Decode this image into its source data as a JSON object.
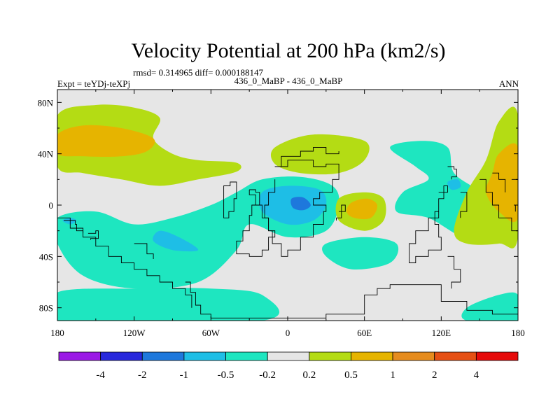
{
  "chart_data": {
    "type": "heatmap",
    "title": "Velocity Potential at 200 hPa (km2/s)",
    "stats": "rmsd= 0.314965 diff= 0.000188147",
    "experiment": "Expt = teYDj-teXPj",
    "comparison": "436_0_MaBP - 436_0_MaBP",
    "period": "ANN",
    "x_ticks": [
      "180",
      "120W",
      "60W",
      "0",
      "60E",
      "120E",
      "180"
    ],
    "x_values": [
      -180,
      -120,
      -60,
      0,
      60,
      120,
      180
    ],
    "y_ticks": [
      "80N",
      "40N",
      "0",
      "40S",
      "80S"
    ],
    "y_values": [
      80,
      40,
      0,
      -40,
      -80
    ],
    "xlim": [
      -180,
      180
    ],
    "ylim": [
      -90,
      90
    ],
    "colorbar": {
      "labels": [
        "-4",
        "-2",
        "-1",
        "-0.5",
        "-0.2",
        "0.2",
        "0.5",
        "1",
        "2",
        "4"
      ],
      "colors": [
        "#9b1ae6",
        "#2828dc",
        "#1e78dc",
        "#1ebee6",
        "#1ee6c0",
        "#e6e6e6",
        "#b4dc14",
        "#e6b400",
        "#e68c1e",
        "#e65014",
        "#e60a0a"
      ]
    },
    "regions": [
      {
        "level": 0.5,
        "color": "#b4dc14",
        "points": [
          [
            -180,
            70
          ],
          [
            -150,
            78
          ],
          [
            -120,
            76
          ],
          [
            -100,
            68
          ],
          [
            -105,
            52
          ],
          [
            -90,
            40
          ],
          [
            -70,
            35
          ],
          [
            -40,
            33
          ],
          [
            -40,
            26
          ],
          [
            -70,
            20
          ],
          [
            -100,
            15
          ],
          [
            -130,
            20
          ],
          [
            -160,
            25
          ],
          [
            -180,
            30
          ]
        ]
      },
      {
        "level": 1,
        "color": "#e6b400",
        "points": [
          [
            -180,
            55
          ],
          [
            -160,
            62
          ],
          [
            -130,
            60
          ],
          [
            -105,
            52
          ],
          [
            -110,
            42
          ],
          [
            -130,
            38
          ],
          [
            -160,
            38
          ],
          [
            -180,
            40
          ]
        ]
      },
      {
        "level": -0.5,
        "color": "#1ee6c0",
        "points": [
          [
            -180,
            -10
          ],
          [
            -150,
            -5
          ],
          [
            -120,
            -15
          ],
          [
            -90,
            -10
          ],
          [
            -60,
            0
          ],
          [
            -40,
            10
          ],
          [
            -20,
            20
          ],
          [
            10,
            22
          ],
          [
            35,
            15
          ],
          [
            40,
            0
          ],
          [
            30,
            -20
          ],
          [
            0,
            -25
          ],
          [
            -30,
            -15
          ],
          [
            -40,
            -35
          ],
          [
            -70,
            -60
          ],
          [
            -120,
            -65
          ],
          [
            -160,
            -55
          ],
          [
            -180,
            -30
          ]
        ]
      },
      {
        "level": -1,
        "color": "#1ebee6",
        "points": [
          [
            -20,
            10
          ],
          [
            0,
            15
          ],
          [
            25,
            12
          ],
          [
            30,
            0
          ],
          [
            20,
            -12
          ],
          [
            0,
            -15
          ],
          [
            -20,
            -5
          ]
        ]
      },
      {
        "level": -2,
        "color": "#1e78dc",
        "points": [
          [
            3,
            5
          ],
          [
            12,
            6
          ],
          [
            18,
            0
          ],
          [
            12,
            -4
          ],
          [
            4,
            -2
          ]
        ]
      },
      {
        "level": -1,
        "color": "#1ebee6",
        "points": [
          [
            -170,
            -10
          ],
          [
            -165,
            -12
          ],
          [
            -170,
            -15
          ],
          [
            -176,
            -12
          ]
        ]
      },
      {
        "level": -1,
        "color": "#1ebee6",
        "points": [
          [
            -100,
            -20
          ],
          [
            -85,
            -25
          ],
          [
            -70,
            -35
          ],
          [
            -90,
            -35
          ],
          [
            -105,
            -28
          ]
        ]
      },
      {
        "level": 0.5,
        "color": "#b4dc14",
        "points": [
          [
            -10,
            45
          ],
          [
            20,
            55
          ],
          [
            60,
            50
          ],
          [
            60,
            35
          ],
          [
            40,
            25
          ],
          [
            10,
            25
          ],
          [
            -10,
            32
          ]
        ]
      },
      {
        "level": 0.5,
        "color": "#b4dc14",
        "points": [
          [
            40,
            5
          ],
          [
            60,
            10
          ],
          [
            75,
            5
          ],
          [
            75,
            -12
          ],
          [
            60,
            -20
          ],
          [
            40,
            -12
          ]
        ]
      },
      {
        "level": 1,
        "color": "#e6b400",
        "points": [
          [
            50,
            2
          ],
          [
            62,
            5
          ],
          [
            70,
            0
          ],
          [
            65,
            -10
          ],
          [
            52,
            -10
          ],
          [
            46,
            -5
          ]
        ]
      },
      {
        "level": -0.5,
        "color": "#1ee6c0",
        "points": [
          [
            80,
            45
          ],
          [
            105,
            50
          ],
          [
            125,
            45
          ],
          [
            130,
            25
          ],
          [
            150,
            10
          ],
          [
            155,
            -5
          ],
          [
            140,
            -25
          ],
          [
            110,
            -10
          ],
          [
            85,
            -5
          ],
          [
            90,
            10
          ],
          [
            110,
            20
          ],
          [
            100,
            30
          ]
        ]
      },
      {
        "level": -1,
        "color": "#1ebee6",
        "points": [
          [
            125,
            18
          ],
          [
            133,
            20
          ],
          [
            135,
            14
          ],
          [
            128,
            12
          ]
        ]
      },
      {
        "level": -0.5,
        "color": "#1ee6c0",
        "points": [
          [
            30,
            -30
          ],
          [
            60,
            -25
          ],
          [
            85,
            -30
          ],
          [
            80,
            -45
          ],
          [
            50,
            -50
          ],
          [
            30,
            -40
          ]
        ]
      },
      {
        "level": 0.5,
        "color": "#b4dc14",
        "points": [
          [
            180,
            70
          ],
          [
            165,
            65
          ],
          [
            155,
            35
          ],
          [
            140,
            10
          ],
          [
            130,
            -20
          ],
          [
            140,
            -30
          ],
          [
            165,
            -30
          ],
          [
            180,
            -25
          ]
        ]
      },
      {
        "level": 1,
        "color": "#e6b400",
        "points": [
          [
            180,
            45
          ],
          [
            165,
            40
          ],
          [
            160,
            25
          ],
          [
            155,
            10
          ],
          [
            165,
            -5
          ],
          [
            180,
            -10
          ]
        ]
      },
      {
        "level": -0.5,
        "color": "#1ee6c0",
        "points": [
          [
            -180,
            -68
          ],
          [
            -120,
            -65
          ],
          [
            -60,
            -65
          ],
          [
            -20,
            -70
          ],
          [
            -20,
            -90
          ],
          [
            -180,
            -90
          ]
        ]
      },
      {
        "level": -0.5,
        "color": "#1ee6c0",
        "points": [
          [
            140,
            -80
          ],
          [
            165,
            -70
          ],
          [
            180,
            -70
          ],
          [
            180,
            -90
          ],
          [
            140,
            -90
          ]
        ]
      }
    ],
    "coastlines": [
      [
        [
          -180,
          -10
        ],
        [
          -170,
          -18
        ],
        [
          -160,
          -25
        ],
        [
          -150,
          -32
        ],
        [
          -140,
          -40
        ],
        [
          -130,
          -45
        ],
        [
          -120,
          -50
        ],
        [
          -110,
          -55
        ],
        [
          -100,
          -60
        ],
        [
          -90,
          -65
        ],
        [
          -80,
          -70
        ],
        [
          -75,
          -80
        ]
      ],
      [
        [
          -175,
          -12
        ],
        [
          -166,
          -15
        ],
        [
          -165,
          -20
        ],
        [
          -160,
          -22
        ]
      ],
      [
        [
          -156,
          -22
        ],
        [
          -150,
          -20
        ],
        [
          -148,
          -26
        ],
        [
          -154,
          -27
        ]
      ],
      [
        [
          -120,
          -30
        ],
        [
          -110,
          -38
        ],
        [
          -105,
          -42
        ]
      ],
      [
        [
          -80,
          -60
        ],
        [
          -76,
          -68
        ],
        [
          -72,
          -78
        ],
        [
          -68,
          -85
        ],
        [
          -60,
          -88
        ],
        [
          -10,
          -88
        ],
        [
          30,
          -85
        ],
        [
          60,
          -70
        ],
        [
          70,
          -65
        ],
        [
          80,
          -62
        ],
        [
          120,
          -75
        ],
        [
          140,
          -82
        ],
        [
          160,
          -85
        ],
        [
          180,
          -88
        ]
      ],
      [
        [
          -50,
          5
        ],
        [
          -50,
          15
        ],
        [
          -45,
          18
        ],
        [
          -40,
          15
        ],
        [
          -40,
          5
        ],
        [
          -42,
          -5
        ],
        [
          -46,
          -10
        ],
        [
          -50,
          -5
        ],
        [
          -50,
          5
        ]
      ],
      [
        [
          -30,
          12
        ],
        [
          -25,
          10
        ],
        [
          -22,
          0
        ],
        [
          -28,
          -8
        ],
        [
          -30,
          -20
        ],
        [
          -35,
          -28
        ],
        [
          -40,
          -32
        ],
        [
          -40,
          -38
        ],
        [
          -30,
          -40
        ],
        [
          -20,
          -35
        ],
        [
          -15,
          -25
        ],
        [
          -10,
          -20
        ],
        [
          -15,
          -10
        ],
        [
          -20,
          0
        ],
        [
          -25,
          8
        ],
        [
          -30,
          12
        ]
      ],
      [
        [
          -10,
          30
        ],
        [
          0,
          35
        ],
        [
          10,
          35
        ],
        [
          20,
          30
        ],
        [
          30,
          32
        ],
        [
          40,
          20
        ],
        [
          35,
          10
        ],
        [
          25,
          5
        ],
        [
          20,
          0
        ],
        [
          30,
          -5
        ],
        [
          28,
          -15
        ],
        [
          20,
          -25
        ],
        [
          10,
          -35
        ],
        [
          0,
          -40
        ],
        [
          -5,
          -30
        ],
        [
          -12,
          -20
        ],
        [
          -15,
          -10
        ],
        [
          -18,
          0
        ],
        [
          -15,
          10
        ],
        [
          -10,
          20
        ]
      ],
      [
        [
          -10,
          30
        ],
        [
          -5,
          38
        ],
        [
          10,
          42
        ],
        [
          20,
          45
        ],
        [
          30,
          40
        ],
        [
          40,
          42
        ]
      ],
      [
        [
          40,
          -5
        ],
        [
          45,
          0
        ],
        [
          42,
          -10
        ],
        [
          38,
          -12
        ]
      ],
      [
        [
          118,
          10
        ],
        [
          125,
          15
        ],
        [
          122,
          5
        ],
        [
          118,
          -5
        ],
        [
          115,
          -15
        ],
        [
          118,
          -25
        ],
        [
          120,
          -35
        ],
        [
          110,
          -40
        ],
        [
          100,
          -45
        ],
        [
          95,
          -30
        ],
        [
          100,
          -20
        ],
        [
          110,
          -10
        ],
        [
          118,
          0
        ]
      ],
      [
        [
          125,
          -40
        ],
        [
          130,
          -50
        ],
        [
          135,
          -60
        ],
        [
          128,
          -65
        ]
      ],
      [
        [
          125,
          30
        ],
        [
          130,
          28
        ],
        [
          132,
          22
        ],
        [
          128,
          20
        ]
      ],
      [
        [
          135,
          10
        ],
        [
          140,
          5
        ],
        [
          140,
          -5
        ],
        [
          135,
          -10
        ]
      ],
      [
        [
          150,
          20
        ],
        [
          155,
          10
        ],
        [
          160,
          0
        ],
        [
          165,
          -10
        ],
        [
          175,
          -20
        ],
        [
          180,
          -30
        ]
      ],
      [
        [
          160,
          25
        ],
        [
          165,
          20
        ],
        [
          170,
          10
        ]
      ],
      [
        [
          175,
          20
        ],
        [
          180,
          0
        ],
        [
          178,
          -5
        ]
      ]
    ]
  }
}
